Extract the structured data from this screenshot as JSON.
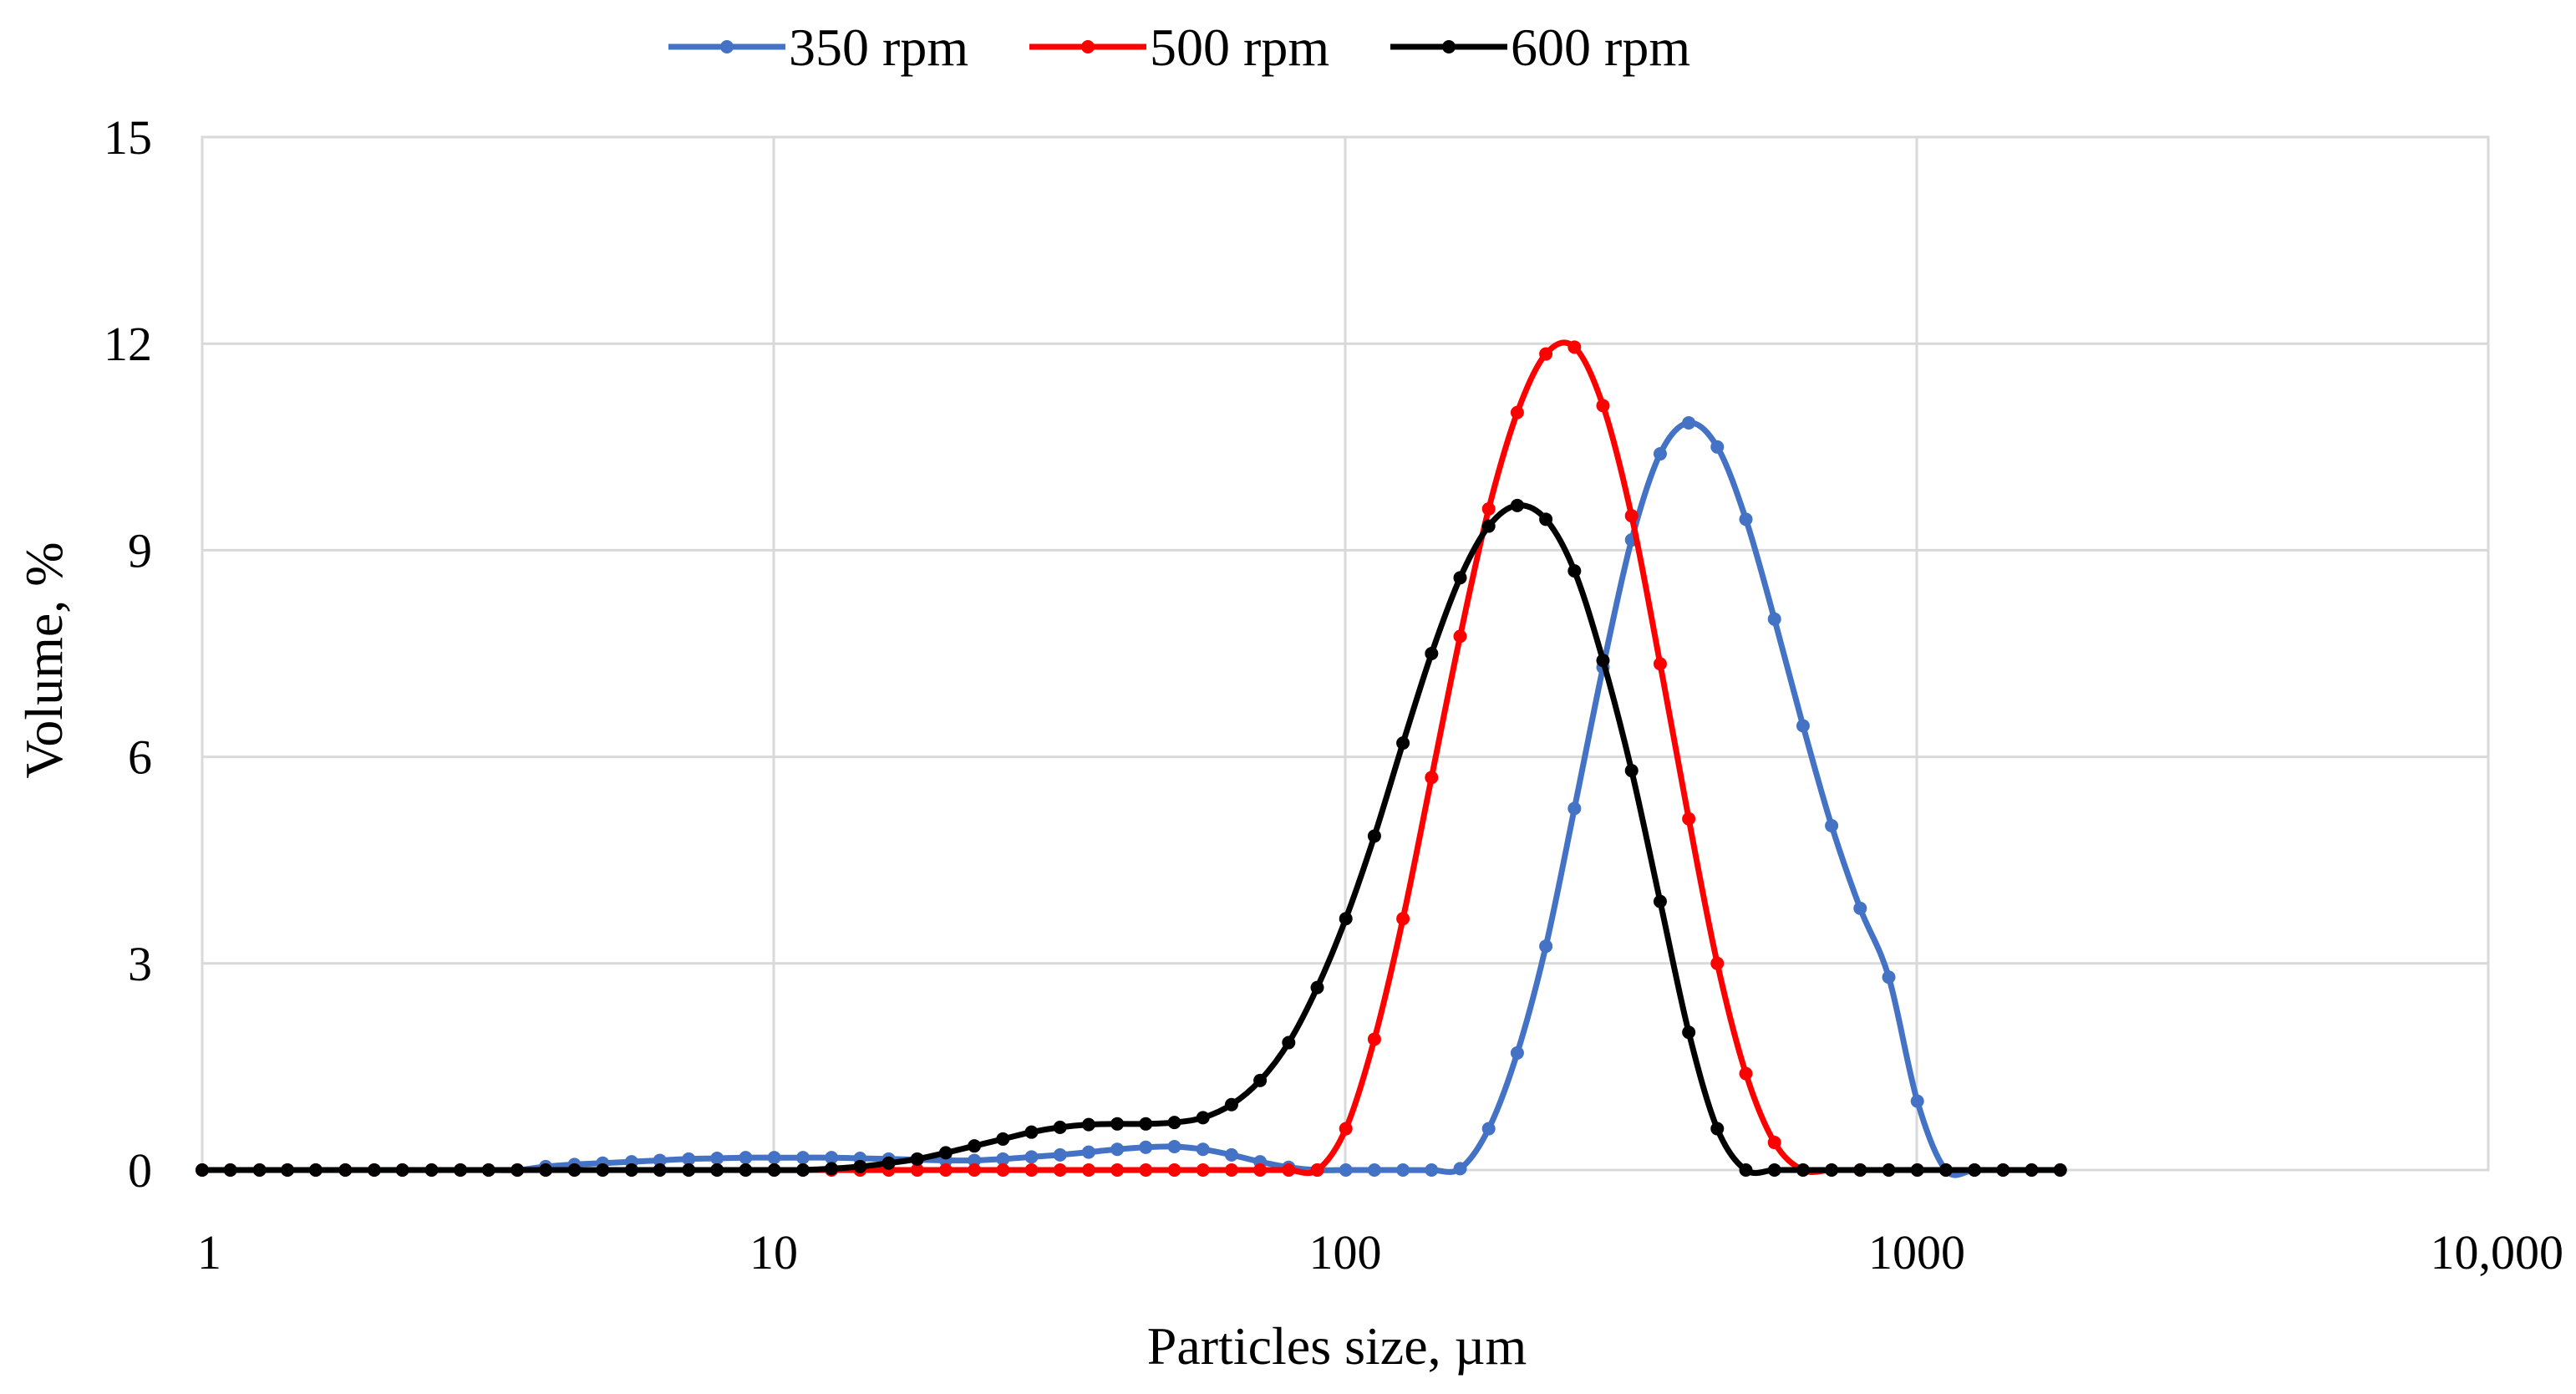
{
  "chart_data": {
    "type": "line",
    "title": "",
    "xlabel": "Particles size, µm",
    "ylabel": "Volume, %",
    "xscale": "log",
    "xlim": [
      1,
      10000
    ],
    "ylim": [
      0,
      15
    ],
    "x_ticks": [
      {
        "value": 1,
        "label": "1"
      },
      {
        "value": 10,
        "label": "10"
      },
      {
        "value": 100,
        "label": "100"
      },
      {
        "value": 1000,
        "label": "1000"
      },
      {
        "value": 10000,
        "label": "10,000"
      }
    ],
    "y_ticks": [
      {
        "value": 0,
        "label": "0"
      },
      {
        "value": 3,
        "label": "3"
      },
      {
        "value": 6,
        "label": "6"
      },
      {
        "value": 9,
        "label": "9"
      },
      {
        "value": 12,
        "label": "12"
      },
      {
        "value": 15,
        "label": "15"
      }
    ],
    "grid": true,
    "legend": {
      "position": "top-center"
    },
    "x": [
      1,
      1.12,
      1.26,
      1.41,
      1.58,
      1.78,
      2,
      2.24,
      2.52,
      2.83,
      3.17,
      3.56,
      3.99,
      4.48,
      5.02,
      5.64,
      6.32,
      7.1,
      7.96,
      8.93,
      10.02,
      11.25,
      12.62,
      14.16,
      15.89,
      17.83,
      20,
      22.44,
      25.18,
      28.25,
      31.7,
      35.57,
      39.91,
      44.77,
      50.24,
      56.37,
      63.25,
      70.96,
      79.62,
      89.34,
      100.24,
      112.47,
      126.19,
      141.59,
      158.87,
      178.25,
      200,
      224.4,
      251.8,
      282.5,
      317,
      355.7,
      399.1,
      447.7,
      502.4,
      563.7,
      632.5,
      709.6,
      796.2,
      893.4,
      1002.4,
      1124.7,
      1261.9,
      1415.9,
      1588.7,
      1782.5
    ],
    "series": [
      {
        "name": "350 rpm",
        "color": "#4472c4",
        "values": [
          0,
          0,
          0,
          0,
          0,
          0,
          0,
          0,
          0,
          0,
          0,
          0,
          0.05,
          0.08,
          0.1,
          0.12,
          0.14,
          0.16,
          0.17,
          0.18,
          0.18,
          0.18,
          0.18,
          0.17,
          0.16,
          0.15,
          0.14,
          0.14,
          0.16,
          0.19,
          0.22,
          0.26,
          0.3,
          0.33,
          0.34,
          0.3,
          0.22,
          0.12,
          0.04,
          0,
          0,
          0,
          0,
          0,
          0.02,
          0.6,
          1.7,
          3.25,
          5.25,
          7.3,
          9.15,
          10.4,
          10.85,
          10.5,
          9.45,
          8.0,
          6.45,
          5.0,
          3.8,
          2.8,
          1.0,
          0,
          0,
          0,
          0,
          0
        ]
      },
      {
        "name": "500 rpm",
        "color": "#ff0000",
        "values": [
          0,
          0,
          0,
          0,
          0,
          0,
          0,
          0,
          0,
          0,
          0,
          0,
          0,
          0,
          0,
          0,
          0,
          0,
          0,
          0,
          0,
          0,
          0,
          0,
          0,
          0,
          0,
          0,
          0,
          0,
          0,
          0,
          0,
          0,
          0,
          0,
          0,
          0,
          0,
          0,
          0.6,
          1.9,
          3.65,
          5.7,
          7.75,
          9.6,
          11.0,
          11.85,
          11.95,
          11.1,
          9.5,
          7.35,
          5.1,
          3.0,
          1.4,
          0.4,
          0,
          0,
          0,
          0,
          0,
          0,
          0,
          0,
          0,
          0
        ]
      },
      {
        "name": "600 rpm",
        "color": "#000000",
        "values": [
          0,
          0,
          0,
          0,
          0,
          0,
          0,
          0,
          0,
          0,
          0,
          0,
          0,
          0,
          0,
          0,
          0,
          0,
          0,
          0,
          0,
          0,
          0.02,
          0.05,
          0.1,
          0.16,
          0.25,
          0.35,
          0.45,
          0.55,
          0.62,
          0.66,
          0.67,
          0.67,
          0.69,
          0.76,
          0.95,
          1.3,
          1.85,
          2.65,
          3.65,
          4.85,
          6.2,
          7.5,
          8.6,
          9.35,
          9.65,
          9.45,
          8.7,
          7.4,
          5.8,
          3.9,
          2.0,
          0.6,
          0,
          0,
          0,
          0,
          0,
          0,
          0,
          0,
          0,
          0,
          0,
          0
        ]
      }
    ]
  }
}
